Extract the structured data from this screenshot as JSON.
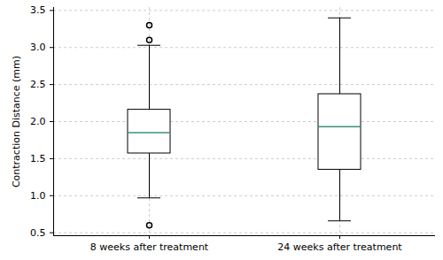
{
  "chart_data": {
    "type": "box",
    "categories": [
      "8 weeks after treatment",
      "24 weeks after treatment"
    ],
    "boxes": [
      {
        "whisker_low": 0.97,
        "q1": 1.57,
        "median": 1.85,
        "q3": 2.16,
        "whisker_high": 3.03,
        "outliers": [
          3.3,
          3.1,
          0.6
        ]
      },
      {
        "whisker_low": 0.66,
        "q1": 1.35,
        "median": 1.93,
        "q3": 2.37,
        "whisker_high": 3.4,
        "outliers": []
      }
    ],
    "y_label": "Contraction Distance (mm)",
    "ylim": [
      0.46,
      3.54
    ],
    "yticks": [
      0.5,
      {
        "value": 1,
        "label": "1.0"
      },
      1.5,
      {
        "value": 2,
        "label": "2.0"
      },
      2.5,
      {
        "value": 3,
        "label": "3.0"
      },
      3.5
    ],
    "grid": true,
    "color": "#3c8f7c"
  }
}
